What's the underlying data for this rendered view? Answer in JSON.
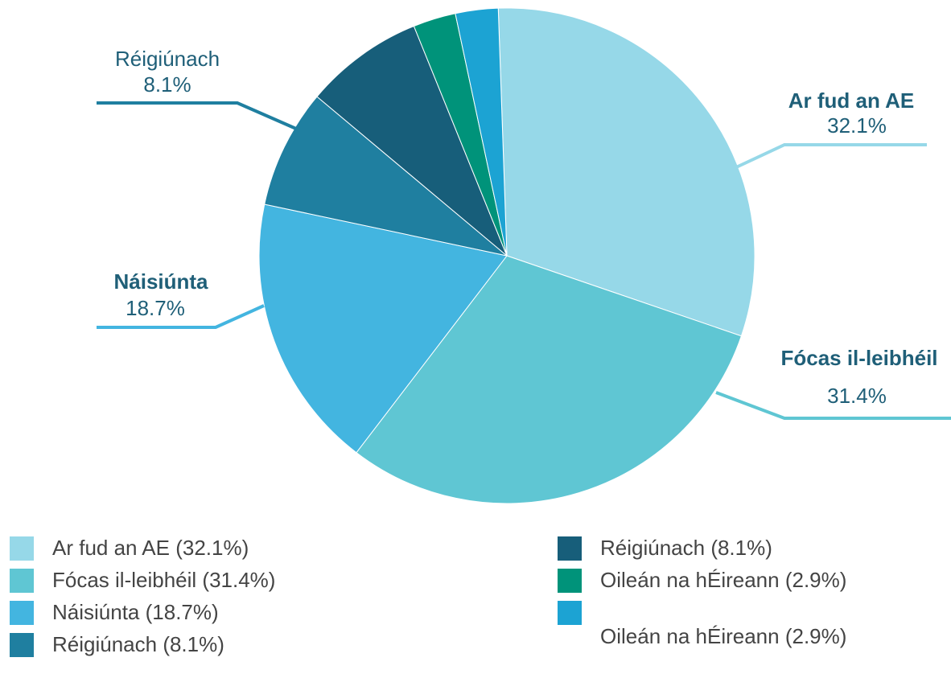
{
  "chart_data": {
    "type": "pie",
    "categories": [
      "Ar fud an AE",
      "Fócas il-leibhéil",
      "Náisiúnta",
      "Réigiúnach",
      "Réigiúnach",
      "Oileán na hÉireann",
      "Oileán na hÉireann"
    ],
    "values": [
      32.1,
      31.4,
      18.7,
      8.1,
      8.1,
      2.9,
      2.9
    ],
    "value_labels": [
      "32.1%",
      "31.4%",
      "18.7%",
      "8.1%",
      "8.1%",
      "2.9%",
      "2.9%"
    ],
    "legend": [
      "Ar fud an AE (32.1%)",
      "Fócas il-leibhéil (31.4%)",
      "Náisiúnta (18.7%)",
      "Réigiúnach (8.1%)",
      "Réigiúnach (8.1%)",
      "Oileán na hÉireann (2.9%)",
      "Oileán na hÉireann (2.9%)"
    ],
    "colors": [
      "#96d8e8",
      "#5fc6d3",
      "#43b5e0",
      "#1f7fa0",
      "#175e7a",
      "#00937a",
      "#1ca3d3"
    ]
  }
}
